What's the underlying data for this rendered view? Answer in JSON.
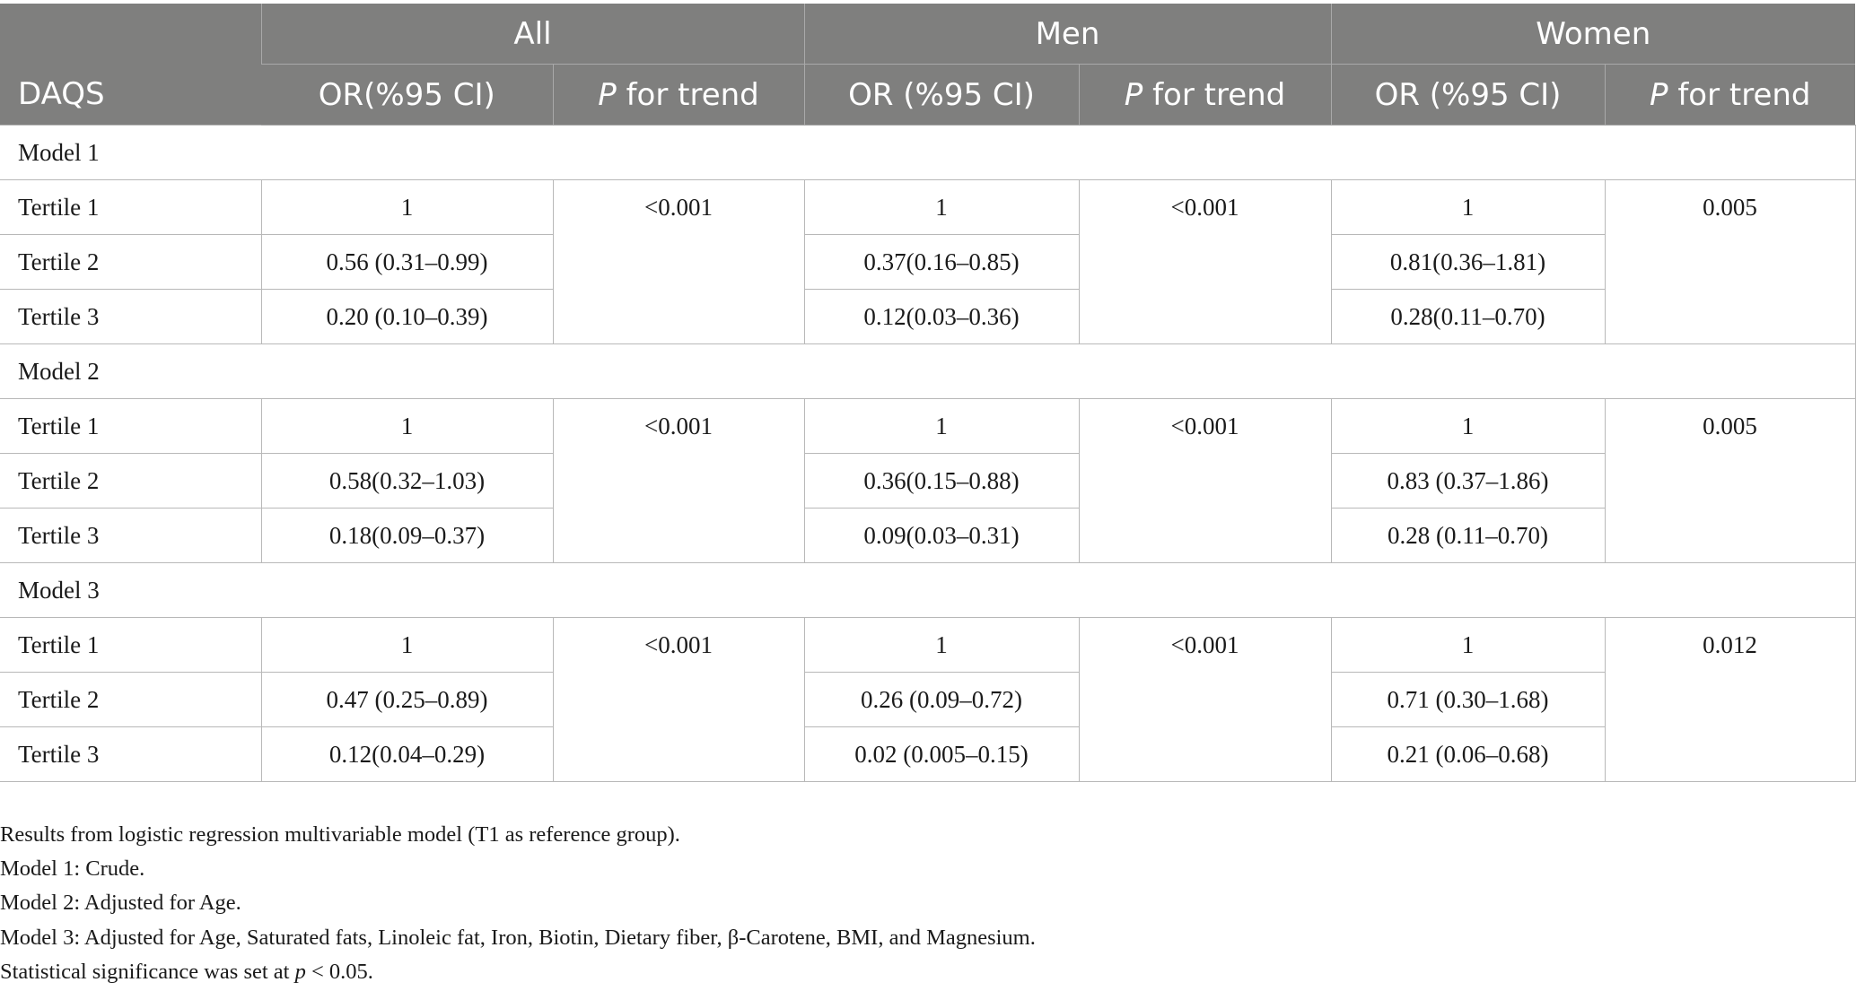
{
  "table": {
    "header": {
      "groups": [
        "All",
        "Men",
        "Women"
      ],
      "row_header": "DAQS",
      "subheaders": [
        "OR(%95 CI)",
        "P",
        " for trend",
        "OR (%95 CI)",
        "P",
        " for trend",
        "OR (%95 CI)",
        "P",
        " for trend"
      ]
    },
    "models": [
      {
        "label": "Model 1",
        "trend": [
          "<0.001",
          "<0.001",
          "0.005"
        ],
        "rows": [
          {
            "label": "Tertile 1",
            "all": "1",
            "men": "1",
            "women": "1"
          },
          {
            "label": "Tertile 2",
            "all": "0.56 (0.31–0.99)",
            "men": "0.37(0.16–0.85)",
            "women": "0.81(0.36–1.81)"
          },
          {
            "label": "Tertile 3",
            "all": "0.20 (0.10–0.39)",
            "men": "0.12(0.03–0.36)",
            "women": "0.28(0.11–0.70)"
          }
        ]
      },
      {
        "label": "Model 2",
        "trend": [
          "<0.001",
          "<0.001",
          "0.005"
        ],
        "rows": [
          {
            "label": "Tertile 1",
            "all": "1",
            "men": "1",
            "women": "1"
          },
          {
            "label": "Tertile 2",
            "all": "0.58(0.32–1.03)",
            "men": "0.36(0.15–0.88)",
            "women": "0.83 (0.37–1.86)"
          },
          {
            "label": "Tertile 3",
            "all": "0.18(0.09–0.37)",
            "men": "0.09(0.03–0.31)",
            "women": "0.28 (0.11–0.70)"
          }
        ]
      },
      {
        "label": "Model 3",
        "trend": [
          "<0.001",
          "<0.001",
          "0.012"
        ],
        "rows": [
          {
            "label": "Tertile 1",
            "all": "1",
            "men": "1",
            "women": "1"
          },
          {
            "label": "Tertile 2",
            "all": "0.47 (0.25–0.89)",
            "men": "0.26 (0.09–0.72)",
            "women": "0.71 (0.30–1.68)"
          },
          {
            "label": "Tertile 3",
            "all": "0.12(0.04–0.29)",
            "men": "0.02 (0.005–0.15)",
            "women": "0.21 (0.06–0.68)"
          }
        ]
      }
    ]
  },
  "notes": {
    "line1": "Results from logistic regression multivariable model (T1 as reference group).",
    "line2": "Model 1: Crude.",
    "line3": "Model 2: Adjusted for Age.",
    "line4": "Model 3: Adjusted for Age, Saturated fats, Linoleic fat, Iron, Biotin, Dietary fiber, β-Carotene, BMI, and Magnesium.",
    "line5_text": "Statistical significance was set at ",
    "line5_p": "p",
    "line5_value": " < 0.05."
  }
}
